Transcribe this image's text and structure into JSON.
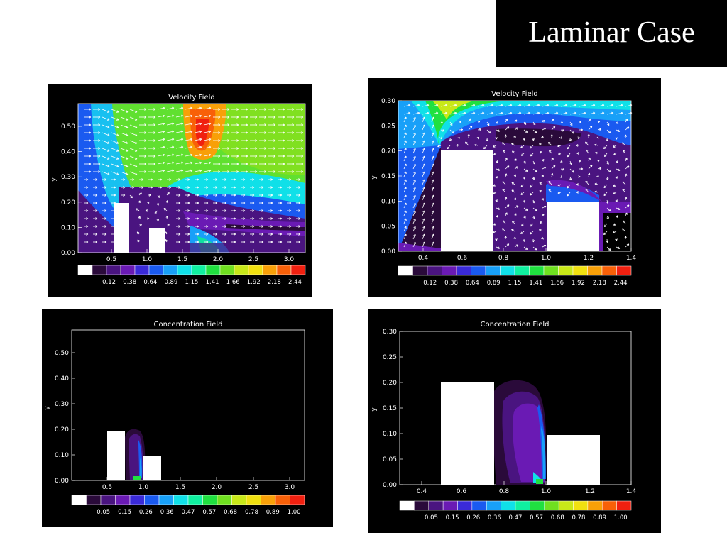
{
  "slide": {
    "title": "Laminar Case"
  },
  "panels": [
    {
      "id": "tl",
      "title": "Velocity Field",
      "ylabel": "y",
      "xticks": [
        "0.5",
        "1.0",
        "1.5",
        "2.0",
        "2.5",
        "3.0"
      ],
      "yticks": [
        "0.00",
        "0.10",
        "0.20",
        "0.30",
        "0.40",
        "0.50"
      ],
      "colorbar": [
        "0.12",
        "0.38",
        "0.64",
        "0.89",
        "1.15",
        "1.41",
        "1.66",
        "1.92",
        "2.18",
        "2.44"
      ]
    },
    {
      "id": "tr",
      "title": "Velocity Field",
      "ylabel": "y",
      "xticks": [
        "0.4",
        "0.6",
        "0.8",
        "1.0",
        "1.2",
        "1.4"
      ],
      "yticks": [
        "0.00",
        "0.05",
        "0.10",
        "0.15",
        "0.20",
        "0.25",
        "0.30"
      ],
      "colorbar": [
        "0.12",
        "0.38",
        "0.64",
        "0.89",
        "1.15",
        "1.41",
        "1.66",
        "1.92",
        "2.18",
        "2.44"
      ]
    },
    {
      "id": "bl",
      "title": "Concentration Field",
      "ylabel": "y",
      "xticks": [
        "0.5",
        "1.0",
        "1.5",
        "2.0",
        "2.5",
        "3.0"
      ],
      "yticks": [
        "0.00",
        "0.10",
        "0.20",
        "0.30",
        "0.40",
        "0.50"
      ],
      "colorbar": [
        "0.05",
        "0.15",
        "0.26",
        "0.36",
        "0.47",
        "0.57",
        "0.68",
        "0.78",
        "0.89",
        "1.00"
      ]
    },
    {
      "id": "br",
      "title": "Concentration Field",
      "ylabel": "y",
      "xticks": [
        "0.4",
        "0.6",
        "0.8",
        "1.0",
        "1.2",
        "1.4"
      ],
      "yticks": [
        "0.00",
        "0.05",
        "0.10",
        "0.15",
        "0.20",
        "0.25",
        "0.30"
      ],
      "colorbar": [
        "0.05",
        "0.15",
        "0.26",
        "0.36",
        "0.47",
        "0.57",
        "0.68",
        "0.78",
        "0.89",
        "1.00"
      ]
    }
  ],
  "colormap": [
    "#ffffff",
    "#2a0a3a",
    "#4a1480",
    "#6a1ab4",
    "#3a2ad8",
    "#1a5af0",
    "#18a0f8",
    "#10e0e8",
    "#10f0a0",
    "#20e040",
    "#70e020",
    "#c8e818",
    "#f0e010",
    "#f8a008",
    "#f86008",
    "#f02010"
  ]
}
